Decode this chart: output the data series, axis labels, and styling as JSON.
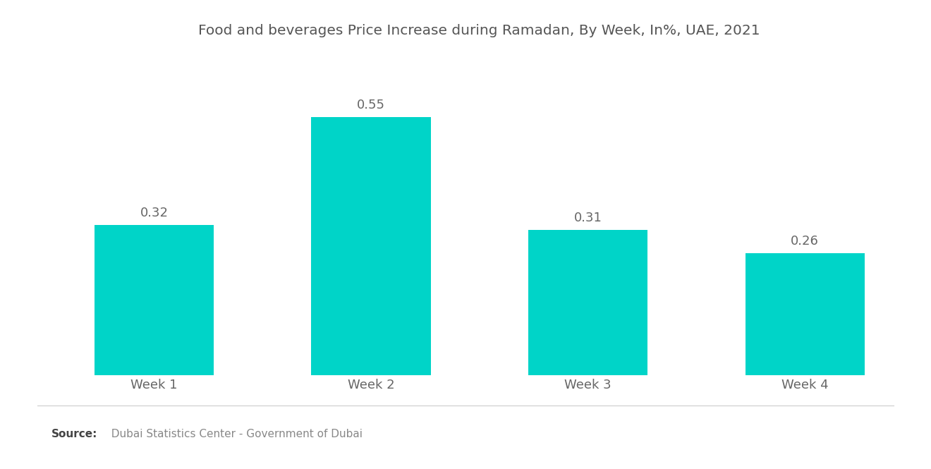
{
  "title": "Food and beverages Price Increase during Ramadan, By Week, In%, UAE, 2021",
  "categories": [
    "Week 1",
    "Week 2",
    "Week 3",
    "Week 4"
  ],
  "values": [
    0.32,
    0.55,
    0.31,
    0.26
  ],
  "bar_color": "#00D4C8",
  "background_color": "#ffffff",
  "title_fontsize": 14.5,
  "label_fontsize": 13,
  "value_fontsize": 13,
  "source_bold": "Source:",
  "source_text": "  Dubai Statistics Center - Government of Dubai",
  "source_fontsize": 11,
  "ylim": [
    0,
    0.68
  ],
  "bar_width": 0.55,
  "title_color": "#555555",
  "label_color": "#666666",
  "value_color": "#666666",
  "source_color": "#888888",
  "divider_color": "#cccccc"
}
